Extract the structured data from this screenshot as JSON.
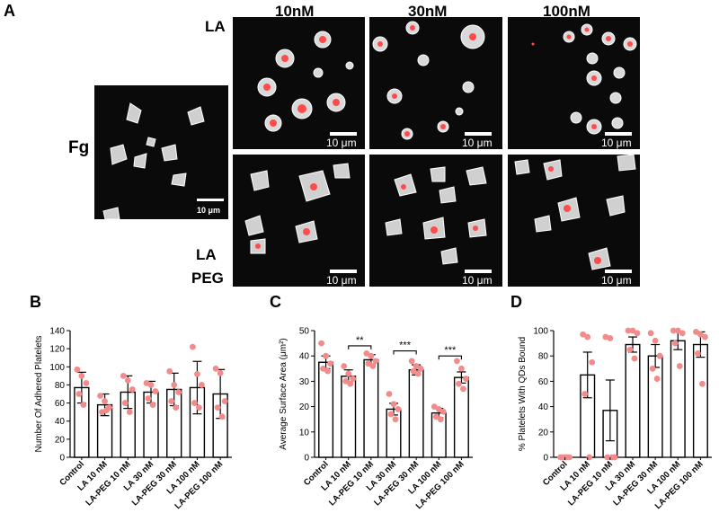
{
  "panels": {
    "A": "A",
    "B": "B",
    "C": "C",
    "D": "D"
  },
  "micrographs": {
    "columns": [
      "10nM",
      "30nM",
      "100nM"
    ],
    "rows": [
      "LA",
      "LA",
      "PEG"
    ],
    "fg_label": "Fg",
    "scalebar_large": "10 μm",
    "scalebar_small": "10 μm"
  },
  "chart_data": [
    {
      "type": "bar",
      "ylabel": "Number Of Adhered Platelets",
      "xlabel": "",
      "ylim": [
        0,
        140
      ],
      "yticks": [
        0,
        20,
        40,
        60,
        80,
        100,
        120,
        140
      ],
      "categories": [
        "Control",
        "LA 10 nM",
        "LA-PEG 10 nM",
        "LA 30 nM",
        "LA-PEG 30 nM",
        "LA 100 nM",
        "LA-PEG 100 nM"
      ],
      "values": [
        77,
        58,
        72,
        72,
        75,
        77,
        70
      ],
      "errors": [
        17,
        12,
        18,
        12,
        18,
        29,
        27
      ],
      "points": [
        [
          97,
          90,
          82,
          70,
          58
        ],
        [
          68,
          62,
          55,
          50,
          52
        ],
        [
          90,
          85,
          75,
          60,
          50
        ],
        [
          82,
          80,
          73,
          65,
          58
        ],
        [
          95,
          80,
          72,
          62,
          55
        ],
        [
          122,
          92,
          80,
          60,
          55
        ],
        [
          98,
          93,
          62,
          55,
          45
        ]
      ]
    },
    {
      "type": "bar",
      "ylabel": "Average Surface Area (μm²)",
      "xlabel": "",
      "ylim": [
        0,
        50
      ],
      "yticks": [
        0,
        10,
        20,
        30,
        40,
        50
      ],
      "categories": [
        "Control",
        "LA 10 nM",
        "LA-PEG 10 nM",
        "LA 30 nM",
        "LA-PEG 30 nM",
        "LA 100 nM",
        "LA-PEG 100 nM"
      ],
      "values": [
        37.5,
        32,
        38.5,
        19,
        34.5,
        17.5,
        31.5
      ],
      "errors": [
        2.5,
        2.5,
        2,
        2.3,
        2,
        1.8,
        2.2
      ],
      "points": [
        [
          45,
          40,
          37,
          35,
          34
        ],
        [
          36,
          33,
          31,
          30,
          29
        ],
        [
          41,
          40,
          38,
          37,
          36
        ],
        [
          25,
          21,
          19,
          17,
          15
        ],
        [
          38,
          36,
          35,
          34,
          33
        ],
        [
          20,
          19,
          18,
          16,
          15
        ],
        [
          38,
          35,
          31,
          29,
          27
        ]
      ],
      "significance": [
        {
          "from": 1,
          "to": 2,
          "label": "**",
          "y": 44
        },
        {
          "from": 3,
          "to": 4,
          "label": "***",
          "y": 42
        },
        {
          "from": 5,
          "to": 6,
          "label": "***",
          "y": 40
        }
      ]
    },
    {
      "type": "bar",
      "ylabel": "% Platelets With QDs Bound",
      "xlabel": "",
      "ylim": [
        0,
        100
      ],
      "yticks": [
        0,
        20,
        40,
        60,
        80,
        100
      ],
      "categories": [
        "Control",
        "LA 10 nM",
        "LA-PEG 10 nM",
        "LA 30 nM",
        "LA-PEG 30 nM",
        "LA 100 nM",
        "LA-PEG 100 nM"
      ],
      "values": [
        0,
        65,
        37,
        89,
        80,
        92,
        89
      ],
      "errors": [
        0,
        18,
        24,
        6,
        9,
        7,
        10
      ],
      "points": [
        [
          0,
          0,
          0,
          0,
          0
        ],
        [
          97,
          95,
          75,
          50,
          0
        ],
        [
          95,
          94,
          0,
          0,
          0
        ],
        [
          100,
          100,
          98,
          85,
          78
        ],
        [
          98,
          92,
          80,
          70,
          62
        ],
        [
          100,
          100,
          98,
          90,
          72
        ],
        [
          99,
          97,
          95,
          82,
          58
        ]
      ]
    }
  ]
}
